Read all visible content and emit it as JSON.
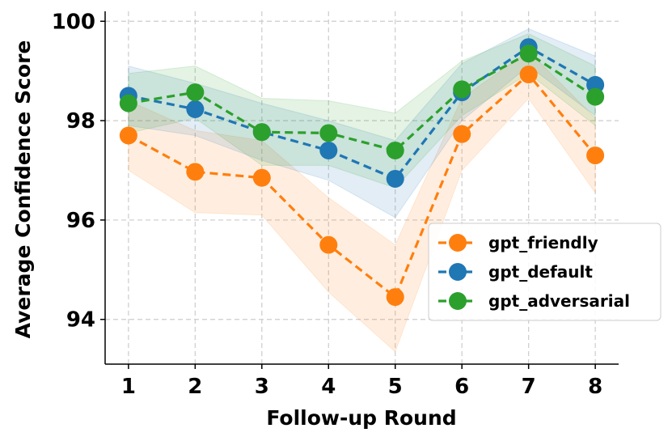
{
  "chart_data": {
    "type": "line",
    "title": "",
    "xlabel": "Follow-up Round",
    "ylabel": "Average Confidence Score",
    "x": [
      1,
      2,
      3,
      4,
      5,
      6,
      7,
      8
    ],
    "xticks": [
      "1",
      "2",
      "3",
      "4",
      "5",
      "6",
      "7",
      "8"
    ],
    "yticks": [
      "94",
      "96",
      "98",
      "100"
    ],
    "ylim": [
      93.1,
      100.2
    ],
    "xlim": [
      0.65,
      8.35
    ],
    "grid": true,
    "legend_position": "lower-right",
    "series": [
      {
        "name": "gpt_friendly",
        "color": "#ff7f0e",
        "values": [
          97.7,
          96.97,
          96.85,
          95.5,
          94.45,
          97.73,
          98.93,
          97.3
        ],
        "lower": [
          97.0,
          96.15,
          96.1,
          94.55,
          93.35,
          97.0,
          98.45,
          96.55
        ],
        "upper": [
          98.4,
          97.8,
          97.6,
          96.45,
          95.5,
          98.45,
          99.4,
          98.05
        ]
      },
      {
        "name": "gpt_default",
        "color": "#1f77b4",
        "values": [
          98.5,
          98.23,
          97.77,
          97.4,
          96.83,
          98.57,
          99.48,
          98.72
        ],
        "lower": [
          97.9,
          97.7,
          97.2,
          96.8,
          96.05,
          98.0,
          99.1,
          98.1
        ],
        "upper": [
          99.1,
          98.75,
          98.35,
          98.0,
          97.6,
          99.15,
          99.85,
          99.3
        ]
      },
      {
        "name": "gpt_adversarial",
        "color": "#2ca02c",
        "values": [
          98.35,
          98.57,
          97.77,
          97.75,
          97.4,
          98.63,
          99.35,
          98.48
        ],
        "lower": [
          97.75,
          98.05,
          97.1,
          97.1,
          96.65,
          98.1,
          98.95,
          97.9
        ],
        "upper": [
          98.95,
          99.1,
          98.45,
          98.4,
          98.15,
          99.2,
          99.75,
          99.1
        ]
      }
    ]
  }
}
